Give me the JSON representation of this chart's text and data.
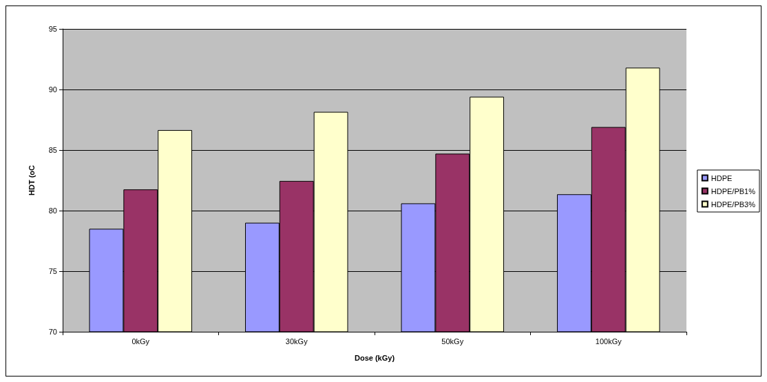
{
  "chart_data": {
    "type": "bar",
    "xlabel": "Dose (kGy)",
    "ylabel": "HDT (oC",
    "categories": [
      "0kGy",
      "30kGy",
      "50kGy",
      "100kGy"
    ],
    "series": [
      {
        "name": "HDPE",
        "color": "#9999ff",
        "values": [
          78.5,
          79.0,
          80.6,
          81.35
        ]
      },
      {
        "name": "HDPE/PB1%",
        "color": "#993366",
        "values": [
          81.75,
          82.45,
          84.7,
          86.9
        ]
      },
      {
        "name": "HDPE/PB3%",
        "color": "#ffffcc",
        "values": [
          86.65,
          88.15,
          89.4,
          91.8
        ]
      }
    ],
    "ylim": [
      70,
      95
    ],
    "yticks": [
      70,
      75,
      80,
      85,
      90,
      95
    ],
    "grid": "y",
    "legend": "right"
  }
}
